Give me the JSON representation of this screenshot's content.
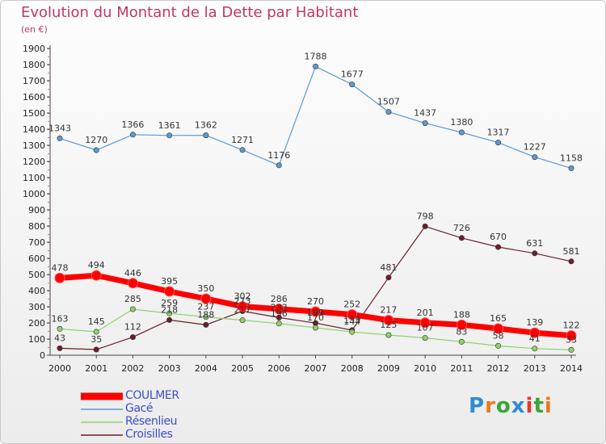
{
  "title": "Evolution du Montant de la Dette par Habitant",
  "unit": "(en €)",
  "logo": {
    "text": "Proxiti",
    "letter_colors": [
      "#2e8bd8",
      "#e87a1e",
      "#3aa537",
      "#2e8bd8",
      "#e23a2a",
      "#3aa537",
      "#e87a1e"
    ]
  },
  "chart_data": {
    "type": "line",
    "title": "Evolution du Montant de la Dette par Habitant",
    "ylabel": "(en €)",
    "ylim": [
      0,
      1900
    ],
    "y_ticks": [
      0,
      100,
      200,
      300,
      400,
      500,
      600,
      700,
      800,
      900,
      1000,
      1100,
      1200,
      1300,
      1400,
      1500,
      1600,
      1700,
      1800,
      1900
    ],
    "x": [
      "2000",
      "2001",
      "2002",
      "2003",
      "2004",
      "2005",
      "2006",
      "2007",
      "2008",
      "2009",
      "2010",
      "2011",
      "2012",
      "2013",
      "2014"
    ],
    "grid": false,
    "legend_position": "bottom-left",
    "series": [
      {
        "name": "Gacé",
        "color": "#5b9bd5",
        "line_width": 1.2,
        "values": [
          1343,
          1270,
          1366,
          1361,
          1362,
          1271,
          1176,
          1788,
          1677,
          1507,
          1437,
          1380,
          1317,
          1227,
          1158
        ]
      },
      {
        "name": "Croisilles",
        "color": "#6b1f2a",
        "line_width": 1.2,
        "values": [
          43,
          35,
          112,
          218,
          188,
          273,
          233,
          199,
          155,
          481,
          798,
          726,
          670,
          631,
          581
        ],
        "labels": [
          "43",
          "35",
          "112",
          "218",
          "188",
          "273",
          "233",
          "199",
          "155",
          "481",
          "798",
          "726",
          "670",
          "631",
          "581"
        ]
      },
      {
        "name": "Résenlieu",
        "color": "#8fd16a",
        "line_width": 1.2,
        "values": [
          163,
          145,
          285,
          259,
          237,
          217,
          196,
          170,
          144,
          125,
          107,
          83,
          58,
          41,
          33
        ],
        "labels": [
          "163",
          "145",
          "285",
          "259",
          "237",
          "217",
          "196",
          "170",
          "144",
          "125",
          "107",
          "83",
          "58",
          "41",
          "33"
        ]
      },
      {
        "name": "COULMER",
        "color": "#ff0000",
        "line_width": 7,
        "values": [
          478,
          494,
          446,
          395,
          350,
          302,
          286,
          270,
          252,
          217,
          201,
          188,
          165,
          139,
          122
        ]
      }
    ]
  },
  "legend": [
    {
      "name": "COULMER",
      "color": "#ff0000",
      "thick": true
    },
    {
      "name": "Gacé",
      "color": "#5b9bd5",
      "thick": false
    },
    {
      "name": "Résenlieu",
      "color": "#8fd16a",
      "thick": false
    },
    {
      "name": "Croisilles",
      "color": "#6b1f2a",
      "thick": false
    }
  ]
}
